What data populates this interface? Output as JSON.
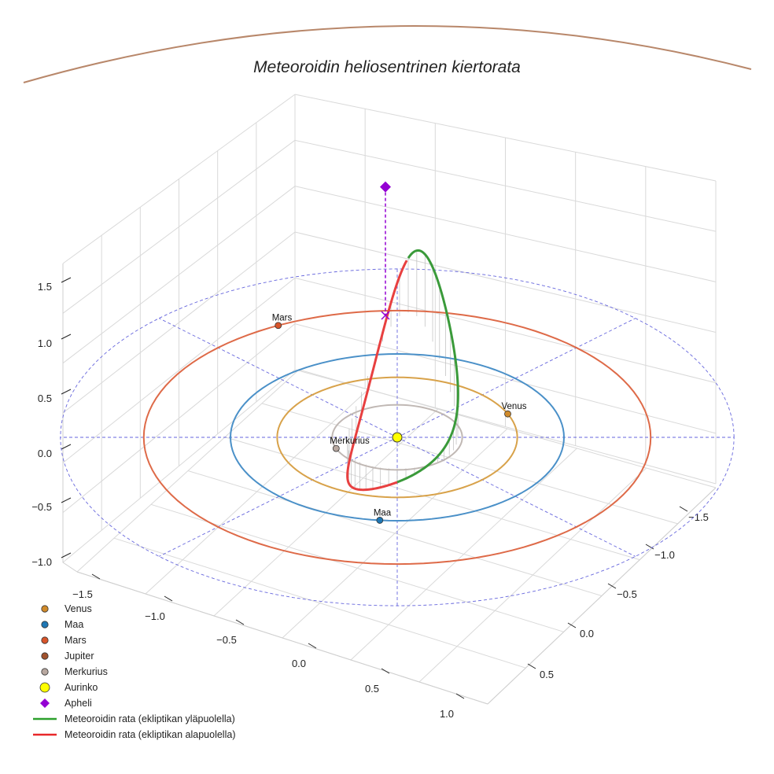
{
  "chart_data": {
    "type": "3d-line",
    "title": "Meteoroidin heliosentrinen kiertorata",
    "axes": {
      "x_ticks": [
        "−1.5",
        "−1.0",
        "−0.5",
        "0.0",
        "0.5",
        "1.0"
      ],
      "y_ticks": [
        "−1.5",
        "−1.0",
        "−0.5",
        "0.0",
        "0.5"
      ],
      "z_ticks": [
        "−1.0",
        "−0.5",
        "0.0",
        "0.5",
        "1.0",
        "1.5"
      ],
      "xlim": [
        -1.6,
        1.6
      ],
      "ylim": [
        -1.6,
        1.6
      ],
      "zlim": [
        -1.1,
        1.7
      ]
    },
    "planets": [
      {
        "name": "Merkurius",
        "orbit_radius_au": 0.39,
        "angle_deg": 200
      },
      {
        "name": "Venus",
        "orbit_radius_au": 0.72,
        "angle_deg": 23
      },
      {
        "name": "Maa",
        "orbit_radius_au": 1.0,
        "angle_deg": 264
      },
      {
        "name": "Mars",
        "orbit_radius_au": 1.52,
        "angle_deg": 118
      }
    ],
    "sun": {
      "name": "Aurinko",
      "x": 0,
      "y": 0,
      "z": 0
    },
    "meteoroid_orbit": {
      "semi_major_axis_au": 1.3,
      "eccentricity": 0.6,
      "inclination_deg": 80,
      "perihelion_direction": "toward viewer",
      "segments": [
        "above ecliptic",
        "below ecliptic"
      ]
    },
    "apheli": {
      "x": -0.3,
      "y": 0.0,
      "z": 1.45
    },
    "legend": [
      {
        "label": "Venus",
        "marker": "circle",
        "color": "#d08a2a"
      },
      {
        "label": "Maa",
        "marker": "circle",
        "color": "#1f77b4"
      },
      {
        "label": "Mars",
        "marker": "circle",
        "color": "#d8542a"
      },
      {
        "label": "Jupiter",
        "marker": "circle",
        "color": "#a0522d"
      },
      {
        "label": "Merkurius",
        "marker": "circle",
        "color": "#b8a8a0"
      },
      {
        "label": "Aurinko",
        "marker": "circle",
        "color": "#ffff00"
      },
      {
        "label": "Apheli",
        "marker": "diamond",
        "color": "#9400d3"
      },
      {
        "label": "Meteoroidin rata (ekliptikan yläpuolella)",
        "marker": "line",
        "color": "#2ca02c"
      },
      {
        "label": "Meteoroidin rata (ekliptikan alapuolella)",
        "marker": "line",
        "color": "#e8282a"
      }
    ]
  },
  "colors": {
    "mercury_orbit": "#c0b8b4",
    "venus_orbit": "#d8a24a",
    "earth_orbit": "#4a90c8",
    "mars_orbit": "#de6a48",
    "reference_grid": "#6666dd",
    "above": "#3a9a3a",
    "below": "#e84040",
    "apheli": "#9400d3",
    "header_arc": "#b8876a"
  }
}
